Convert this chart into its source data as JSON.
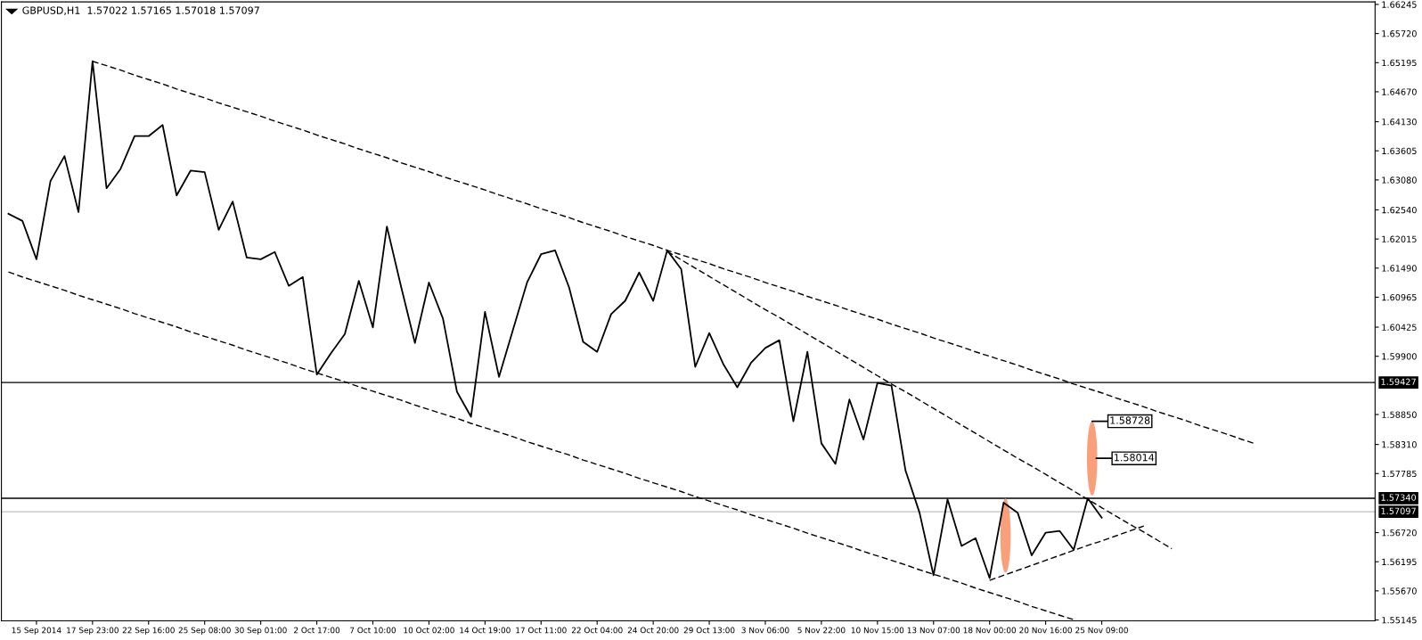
{
  "chart_data": {
    "type": "line",
    "title": "GBPUSD,H1  1.57022 1.57165 1.57018 1.57097",
    "categories": [
      null,
      null,
      "15 Sep 2014",
      null,
      null,
      null,
      "17 Sep 23:00",
      null,
      null,
      null,
      "22 Sep 16:00",
      null,
      null,
      null,
      "25 Sep 08:00",
      null,
      null,
      null,
      "30 Sep 01:00",
      null,
      null,
      null,
      "2 Oct 17:00",
      null,
      null,
      null,
      "7 Oct 10:00",
      null,
      null,
      null,
      "10 Oct 02:00",
      null,
      null,
      null,
      "14 Oct 19:00",
      null,
      null,
      null,
      "17 Oct 11:00",
      null,
      null,
      null,
      "22 Oct 04:00",
      null,
      null,
      null,
      "24 Oct 20:00",
      null,
      null,
      null,
      "29 Oct 13:00",
      null,
      null,
      null,
      "3 Nov 06:00",
      null,
      null,
      null,
      "5 Nov 22:00",
      null,
      null,
      null,
      "10 Nov 15:00",
      null,
      null,
      null,
      "13 Nov 07:00",
      null,
      null,
      null,
      "18 Nov 00:00",
      null,
      null,
      null,
      "20 Nov 16:00",
      null,
      null,
      null,
      "25 Nov 09:00",
      null,
      null,
      null,
      null,
      null,
      null,
      null,
      null,
      null,
      null,
      null,
      null,
      null,
      null,
      null,
      null,
      null,
      null,
      null
    ],
    "ylim": [
      1.5513,
      1.6629
    ],
    "yticks": [
      {
        "value": 1.66245,
        "label": "1.66245"
      },
      {
        "value": 1.6572,
        "label": "1.65720"
      },
      {
        "value": 1.65195,
        "label": "1.65195"
      },
      {
        "value": 1.6467,
        "label": "1.64670"
      },
      {
        "value": 1.6413,
        "label": "1.64130"
      },
      {
        "value": 1.63605,
        "label": "1.63605"
      },
      {
        "value": 1.6308,
        "label": "1.63080"
      },
      {
        "value": 1.6254,
        "label": "1.62540"
      },
      {
        "value": 1.62015,
        "label": "1.62015"
      },
      {
        "value": 1.6149,
        "label": "1.61490"
      },
      {
        "value": 1.60965,
        "label": "1.60965"
      },
      {
        "value": 1.60425,
        "label": "1.60425"
      },
      {
        "value": 1.599,
        "label": "1.59900"
      },
      {
        "value": 1.5885,
        "label": "1.58850"
      },
      {
        "value": 1.5831,
        "label": "1.58310"
      },
      {
        "value": 1.57785,
        "label": "1.57785"
      },
      {
        "value": 1.5672,
        "label": "1.56720"
      },
      {
        "value": 1.56195,
        "label": "1.56195"
      },
      {
        "value": 1.5567,
        "label": "1.55670"
      },
      {
        "value": 1.55145,
        "label": "1.55145"
      }
    ],
    "series": [
      {
        "color": "#000000",
        "line_style": "solid",
        "values": [
          1.6247,
          1.6234,
          1.6165,
          1.6306,
          1.6351,
          1.625,
          1.6522,
          1.6293,
          1.6328,
          1.6387,
          1.6387,
          1.6407,
          1.628,
          1.6325,
          1.6322,
          1.6218,
          1.6269,
          1.6168,
          1.6165,
          1.6178,
          1.6117,
          1.6133,
          1.5957,
          1.5995,
          1.603,
          1.6126,
          1.6042,
          1.6224,
          1.6117,
          1.6014,
          1.6123,
          1.6058,
          1.5926,
          1.5881,
          1.607,
          1.5953,
          1.6038,
          1.6123,
          1.6174,
          1.6181,
          1.6114,
          1.6016,
          1.5998,
          1.6066,
          1.609,
          1.6141,
          1.609,
          1.6181,
          1.6147,
          1.5971,
          1.6032,
          1.5976,
          1.5934,
          1.5979,
          1.6005,
          1.6019,
          1.5873,
          1.5998,
          1.5833,
          1.5796,
          1.5912,
          1.584,
          1.5942,
          1.5937,
          1.5784,
          1.5708,
          1.5595,
          1.5732,
          1.5648,
          1.5662,
          1.559,
          1.5726,
          1.5708,
          1.5631,
          1.5672,
          1.5675,
          1.5641,
          1.5734,
          1.5699,
          null,
          null,
          null,
          null,
          null,
          null,
          null,
          null,
          null,
          null,
          null,
          null,
          null,
          null,
          null,
          null,
          null,
          null,
          null
        ]
      },
      {
        "type": "line",
        "color": "#000000",
        "line_style": "dashed",
        "values": [
          null,
          null,
          null,
          null,
          null,
          null,
          1.6522,
          1.6514,
          1.6506,
          1.6497,
          1.6489,
          1.6481,
          1.6472,
          1.6464,
          1.6456,
          1.6447,
          1.6439,
          1.6431,
          1.6423,
          1.6414,
          1.6406,
          1.6398,
          1.6389,
          1.6381,
          1.6373,
          1.6364,
          1.6356,
          1.6348,
          1.6339,
          1.6331,
          1.6323,
          1.6314,
          1.6306,
          1.6298,
          1.629,
          1.6281,
          1.6273,
          1.6265,
          1.6256,
          1.6248,
          1.624,
          1.6231,
          1.6223,
          1.6215,
          1.6206,
          1.6198,
          1.619,
          1.6181,
          1.6173,
          1.6165,
          1.6157,
          1.6148,
          1.614,
          1.6132,
          1.6123,
          1.6115,
          1.6107,
          1.6098,
          1.609,
          1.6082,
          1.6073,
          1.6065,
          1.6057,
          1.6048,
          1.604,
          1.6032,
          1.6023,
          1.6015,
          1.6007,
          1.5998,
          1.599,
          1.5982,
          1.5974,
          1.5965,
          1.5957,
          1.5949,
          1.594,
          1.5932,
          1.5924,
          1.5915,
          1.5907,
          1.5899,
          1.589,
          1.5882,
          1.5874,
          1.5865,
          1.5857,
          1.5849,
          1.584,
          1.5832,
          null,
          null,
          null,
          null,
          null,
          null,
          null,
          null
        ]
      },
      {
        "type": "line",
        "color": "#000000",
        "line_style": "dashed",
        "values": [
          1.6142,
          1.6133,
          1.6125,
          1.6117,
          1.6109,
          1.61,
          1.6092,
          1.6084,
          1.6076,
          1.6067,
          1.6059,
          1.6051,
          1.6043,
          1.6034,
          1.6026,
          1.6018,
          1.601,
          1.6001,
          1.5993,
          1.5985,
          1.5977,
          1.5968,
          1.596,
          1.5952,
          1.5944,
          1.5935,
          1.5927,
          1.5919,
          1.5911,
          1.5902,
          1.5894,
          1.5886,
          1.5878,
          1.5869,
          1.5861,
          1.5853,
          1.5845,
          1.5836,
          1.5828,
          1.582,
          1.5812,
          1.5803,
          1.5795,
          1.5787,
          1.5779,
          1.577,
          1.5762,
          1.5754,
          1.5746,
          1.5737,
          1.5729,
          1.5721,
          1.5713,
          1.5704,
          1.5696,
          1.5688,
          1.568,
          1.5671,
          1.5663,
          1.5655,
          1.5647,
          1.5638,
          1.563,
          1.5622,
          1.5614,
          1.5605,
          1.5597,
          1.5589,
          1.5581,
          1.5572,
          1.5564,
          1.5556,
          1.5548,
          1.5539,
          1.5531,
          1.5523,
          1.5515,
          null,
          null,
          null,
          null,
          null,
          null,
          null,
          null,
          null,
          null,
          null,
          null,
          null,
          null,
          null,
          null,
          null,
          null,
          null,
          null,
          null
        ]
      },
      {
        "type": "line",
        "color": "#000000",
        "line_style": "dashed",
        "values": [
          null,
          null,
          null,
          null,
          null,
          null,
          null,
          null,
          null,
          null,
          null,
          null,
          null,
          null,
          null,
          null,
          null,
          null,
          null,
          null,
          null,
          null,
          null,
          null,
          null,
          null,
          null,
          null,
          null,
          null,
          null,
          null,
          null,
          null,
          null,
          null,
          null,
          null,
          null,
          null,
          null,
          null,
          null,
          null,
          null,
          null,
          null,
          1.6179,
          1.6164,
          1.6149,
          1.6134,
          1.6119,
          1.6104,
          1.6089,
          1.6074,
          1.606,
          1.6045,
          1.603,
          1.6015,
          1.6,
          1.5985,
          1.597,
          1.5955,
          1.594,
          1.5926,
          1.5911,
          1.5896,
          1.5881,
          1.5866,
          1.5851,
          1.5836,
          1.5821,
          1.5806,
          1.5792,
          1.5777,
          1.5762,
          1.5747,
          1.5732,
          1.5717,
          1.5702,
          1.5687,
          1.5673,
          1.5658,
          1.5643,
          null,
          null,
          null,
          null,
          null,
          null,
          null,
          null,
          null,
          null,
          null,
          null,
          null,
          null
        ]
      },
      {
        "type": "line",
        "color": "#000000",
        "line_style": "dashed",
        "values": [
          null,
          null,
          null,
          null,
          null,
          null,
          null,
          null,
          null,
          null,
          null,
          null,
          null,
          null,
          null,
          null,
          null,
          null,
          null,
          null,
          null,
          null,
          null,
          null,
          null,
          null,
          null,
          null,
          null,
          null,
          null,
          null,
          null,
          null,
          null,
          null,
          null,
          null,
          null,
          null,
          null,
          null,
          null,
          null,
          null,
          null,
          null,
          null,
          null,
          null,
          null,
          null,
          null,
          null,
          null,
          null,
          null,
          null,
          null,
          null,
          null,
          null,
          null,
          null,
          null,
          null,
          null,
          null,
          null,
          null,
          1.5586,
          1.5595,
          1.5604,
          1.5613,
          1.5622,
          1.5631,
          1.564,
          1.5649,
          1.5657,
          1.5666,
          1.5675,
          1.5684,
          null,
          null,
          null,
          null,
          null,
          null,
          null,
          null,
          null,
          null,
          null,
          null,
          null,
          null,
          null,
          null
        ]
      }
    ],
    "ref_lines": [
      {
        "axis": "y",
        "value": 1.59427,
        "label": "1.59427",
        "color": "#000000",
        "line_style": "solid"
      },
      {
        "axis": "y",
        "value": 1.5734,
        "label": "1.57340",
        "color": "#000000",
        "line_style": "solid"
      },
      {
        "axis": "y",
        "value": 1.57097,
        "label": "1.57097",
        "color": "#c0c0c0",
        "line_style": "solid"
      }
    ],
    "annotations": [
      "1.58728",
      "1.58014"
    ]
  }
}
